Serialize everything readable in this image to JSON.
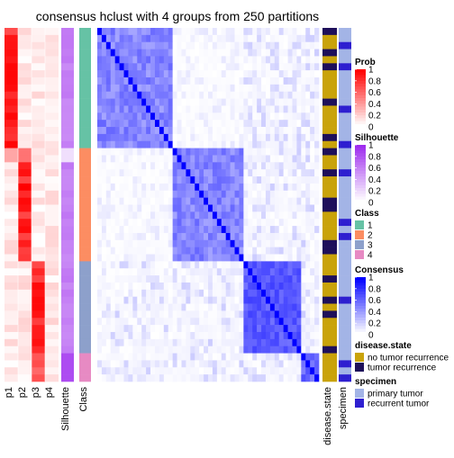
{
  "chart_data": {
    "type": "heatmap",
    "title": "consensus hclust with 4 groups from 250 partitions",
    "n_samples": 50,
    "group_sizes": [
      17,
      16,
      13,
      4
    ],
    "class_colors": {
      "1": "#66C2A5",
      "2": "#FC8D62",
      "3": "#8DA0CB",
      "4": "#E78AC3"
    },
    "annotation_columns": {
      "prob": [
        "p1",
        "p2",
        "p3",
        "p4"
      ],
      "silhouette": "Silhouette",
      "class": "Class",
      "disease_state": "disease.state",
      "specimen": "specimen"
    },
    "legends": [
      {
        "title": "Prob",
        "type": "continuous",
        "ticks": [
          "1",
          "0.8",
          "0.6",
          "0.4",
          "0.2",
          "0"
        ],
        "color_low": "#FFFFFF",
        "color_high": "#FF0000"
      },
      {
        "title": "Silhouette",
        "type": "continuous",
        "ticks": [
          "1",
          "0.8",
          "0.6",
          "0.4",
          "0.2",
          "0"
        ],
        "color_low": "#FFFFFF",
        "color_high": "#9E2CEE"
      },
      {
        "title": "Class",
        "type": "discrete",
        "items": [
          {
            "label": "1",
            "color": "#66C2A5"
          },
          {
            "label": "2",
            "color": "#FC8D62"
          },
          {
            "label": "3",
            "color": "#8DA0CB"
          },
          {
            "label": "4",
            "color": "#E78AC3"
          }
        ]
      },
      {
        "title": "Consensus",
        "type": "continuous",
        "ticks": [
          "1",
          "0.8",
          "0.6",
          "0.4",
          "0.2",
          "0"
        ],
        "color_low": "#FFFFFF",
        "color_high": "#0000FF"
      },
      {
        "title": "disease.state",
        "type": "discrete",
        "items": [
          {
            "label": "no tumor recurrence",
            "color": "#C9A30A"
          },
          {
            "label": "tumor recurrence",
            "color": "#1E0F5A"
          }
        ]
      },
      {
        "title": "specimen",
        "type": "discrete",
        "items": [
          {
            "label": "primary tumor",
            "color": "#A3B4E6"
          },
          {
            "label": "recurrent tumor",
            "color": "#2E1FD0"
          }
        ]
      }
    ]
  }
}
